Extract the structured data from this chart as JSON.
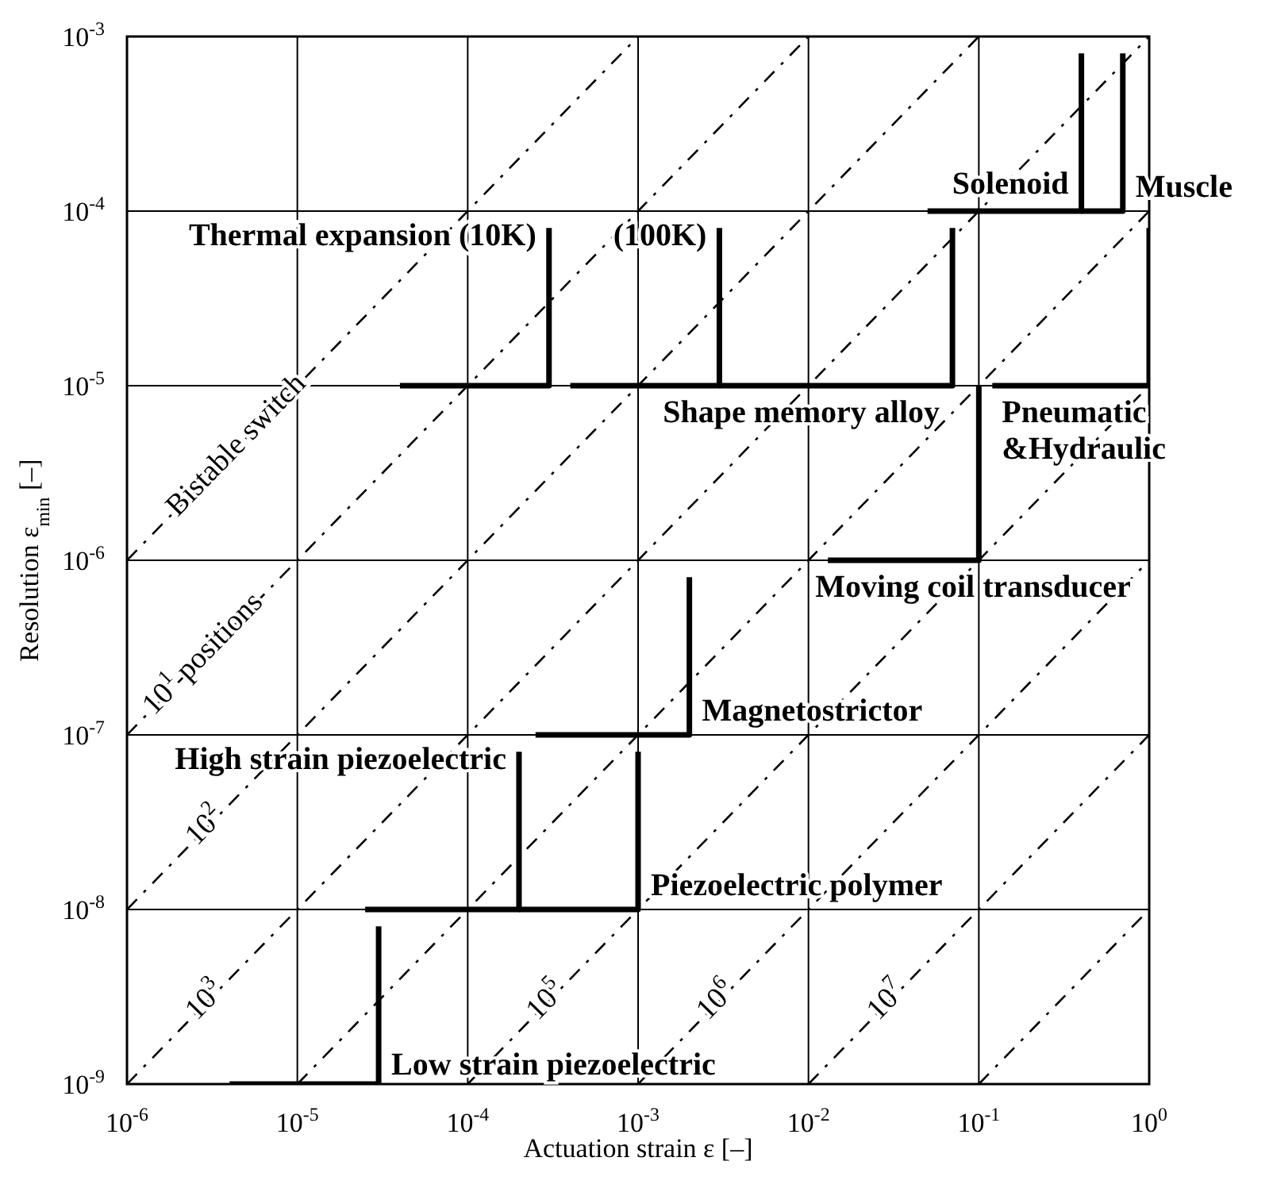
{
  "chart_data": {
    "type": "line",
    "xlabel": "Actuation strain ε [–]",
    "ylabel": "Resolution ε$_{min}$ [–]",
    "log": "xy",
    "grid": true,
    "marker": "none",
    "xlim": [
      1e-06,
      1
    ],
    "ylim": [
      1e-09,
      0.001
    ],
    "xticks": [
      {
        "value": 1e-06,
        "label": "10$^{-6}$"
      },
      {
        "value": 1e-05,
        "label": "10$^{-5}$"
      },
      {
        "value": 0.0001,
        "label": "10$^{-4}$"
      },
      {
        "value": 0.001,
        "label": "10$^{-3}$"
      },
      {
        "value": 0.01,
        "label": "10$^{-2}$"
      },
      {
        "value": 0.1,
        "label": "10$^{-1}$"
      },
      {
        "value": 1,
        "label": "10$^{0}$"
      }
    ],
    "yticks": [
      {
        "value": 1e-09,
        "label": "10$^{-9}$"
      },
      {
        "value": 1e-08,
        "label": "10$^{-8}$"
      },
      {
        "value": 1e-07,
        "label": "10$^{-7}$"
      },
      {
        "value": 1e-06,
        "label": "10$^{-6}$"
      },
      {
        "value": 1e-05,
        "label": "10$^{-5}$"
      },
      {
        "value": 0.0001,
        "label": "10$^{-4}$"
      },
      {
        "value": 0.001,
        "label": "10$^{-3}$"
      }
    ],
    "series": [
      {
        "name": "Bistable switch",
        "line_style": "dashed",
        "color": "#000000",
        "x": [
          1e-06,
          0.001
        ],
        "values": [
          1e-06,
          0.001
        ]
      },
      {
        "name": "10$^{1}$ positions",
        "line_style": "dashed",
        "color": "#000000",
        "x": [
          1e-06,
          0.01
        ],
        "values": [
          1e-07,
          0.001
        ]
      },
      {
        "name": "10$^{2}$",
        "line_style": "dashed",
        "color": "#000000",
        "x": [
          1e-06,
          0.1
        ],
        "values": [
          1e-08,
          0.001
        ]
      },
      {
        "name": "10$^{3}$",
        "line_style": "dashed",
        "color": "#000000",
        "x": [
          1e-06,
          1
        ],
        "values": [
          1e-09,
          0.001
        ]
      },
      {
        "line_style": "dashed",
        "color": "#000000",
        "x": [
          1e-05,
          1
        ],
        "values": [
          1e-09,
          0.0001
        ]
      },
      {
        "name": "10$^{5}$",
        "line_style": "dashed",
        "color": "#000000",
        "x": [
          0.0001,
          1
        ],
        "values": [
          1e-09,
          1e-05
        ]
      },
      {
        "name": "10$^{6}$",
        "line_style": "dashed",
        "color": "#000000",
        "x": [
          0.001,
          1
        ],
        "values": [
          1e-09,
          1e-06
        ]
      },
      {
        "name": "10$^{7}$",
        "line_style": "dashed",
        "color": "#000000",
        "x": [
          0.01,
          1
        ],
        "values": [
          1e-09,
          1e-07
        ]
      },
      {
        "line_style": "dashed",
        "color": "#000000",
        "x": [
          0.1,
          1
        ],
        "values": [
          1e-09,
          1e-08
        ]
      },
      {
        "name": "Low strain piezoelectric",
        "line_style": "solid",
        "color": "#000000",
        "x": [
          4e-06,
          3e-05,
          3e-05
        ],
        "values": [
          1e-09,
          1e-09,
          8e-09
        ]
      },
      {
        "name": "High strain piezoelectric",
        "line_style": "solid",
        "color": "#000000",
        "x": [
          2.5e-05,
          0.0002,
          0.0002
        ],
        "values": [
          1e-08,
          1e-08,
          8e-08
        ]
      },
      {
        "name": "Piezoelectric polymer",
        "line_style": "solid",
        "color": "#000000",
        "x": [
          0.0002,
          0.001,
          0.001
        ],
        "values": [
          1e-08,
          1e-08,
          8e-08
        ]
      },
      {
        "name": "Magnetostrictor",
        "line_style": "solid",
        "color": "#000000",
        "x": [
          0.00025,
          0.002,
          0.002
        ],
        "values": [
          1e-07,
          1e-07,
          8e-07
        ]
      },
      {
        "name": "Moving coil transducer",
        "line_style": "solid",
        "color": "#000000",
        "x": [
          0.013,
          0.1,
          0.1
        ],
        "values": [
          1e-06,
          1e-06,
          1e-05
        ]
      },
      {
        "name": "Thermal expansion (10K)",
        "line_style": "solid",
        "color": "#000000",
        "x": [
          4e-05,
          0.0003,
          0.0003
        ],
        "values": [
          1e-05,
          1e-05,
          8e-05
        ]
      },
      {
        "name": "(100K)",
        "line_style": "solid",
        "color": "#000000",
        "x": [
          0.0004,
          0.003,
          0.003
        ],
        "values": [
          1e-05,
          1e-05,
          8e-05
        ]
      },
      {
        "name": "Shape memory alloy",
        "line_style": "solid",
        "color": "#000000",
        "x": [
          0.003,
          0.07,
          0.07
        ],
        "values": [
          1e-05,
          1e-05,
          8e-05
        ]
      },
      {
        "name": "Pneumatic\n&Hydraulic",
        "line_style": "solid",
        "color": "#000000",
        "x": [
          0.12,
          1,
          1
        ],
        "values": [
          1e-05,
          1e-05,
          8e-05
        ]
      },
      {
        "name": "Solenoid",
        "line_style": "solid",
        "color": "#000000",
        "x": [
          0.05,
          0.4,
          0.4
        ],
        "values": [
          0.0001,
          0.0001,
          0.0008
        ]
      },
      {
        "name": "Muscle",
        "line_style": "solid",
        "color": "#000000",
        "x": [
          0.4,
          0.7,
          0.7
        ],
        "values": [
          0.0001,
          0.0001,
          0.0008
        ]
      }
    ]
  }
}
